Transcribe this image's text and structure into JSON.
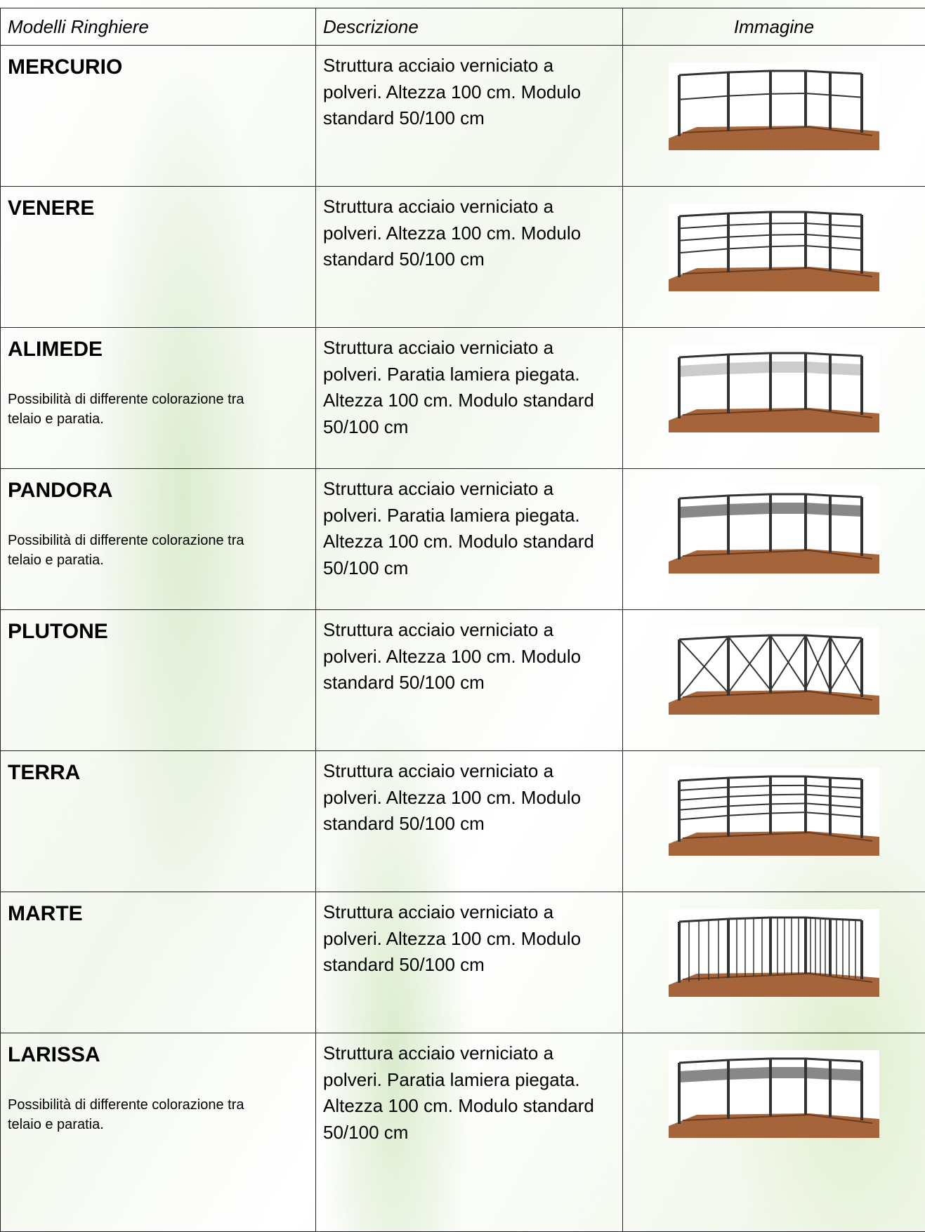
{
  "table": {
    "headers": [
      "Modelli Ringhiere",
      "Descrizione",
      "Immagine"
    ],
    "rows": [
      {
        "name": "MERCURIO",
        "description": "Struttura acciaio verniciato a polveri. Altezza 100 cm. Modulo standard 50/100 cm"
      },
      {
        "name": "VENERE",
        "description": "Struttura acciaio verniciato a polveri. Altezza 100 cm. Modulo standard 50/100 cm"
      },
      {
        "name": "ALIMEDE",
        "note": "Possibilità di differente colorazione tra telaio e paratia.",
        "description": "Struttura acciaio verniciato a polveri. Paratia lamiera piegata. Altezza 100 cm. Modulo standard 50/100 cm"
      },
      {
        "name": "PANDORA",
        "note": "Possibilità di differente colorazione tra telaio e paratia.",
        "description": "Struttura acciaio verniciato a polveri. Paratia lamiera piegata. Altezza 100 cm. Modulo standard 50/100 cm"
      },
      {
        "name": "PLUTONE",
        "description": "Struttura acciaio verniciato a polveri. Altezza 100 cm. Modulo standard 50/100 cm"
      },
      {
        "name": "TERRA",
        "description": "Struttura acciaio verniciato a polveri. Altezza 100 cm. Modulo standard 50/100 cm"
      },
      {
        "name": "MARTE",
        "description": "Struttura acciaio verniciato a polveri. Altezza 100 cm. Modulo standard 50/100 cm"
      },
      {
        "name": "LARISSA",
        "note": "Possibilità di differente colorazione tra telaio e paratia.",
        "description": "Struttura acciaio verniciato a polveri. Paratia lamiera piegata. Altezza 100 cm. Modulo standard 50/100 cm"
      }
    ]
  }
}
